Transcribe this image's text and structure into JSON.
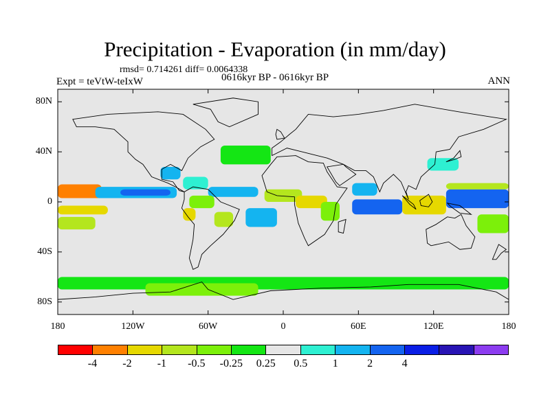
{
  "title": "Precipitation - Evaporation (in mm/day)",
  "stats_text": "rmsd= 0.714261 diff= 0.0064338",
  "experiment_label": "Expt = teVtW-teIxW",
  "period_label": "0616kyr BP - 0616kyr BP",
  "season_label": "ANN",
  "chart_data": {
    "type": "heatmap",
    "title": "Precipitation - Evaporation (in mm/day)",
    "subtitle": "0616kyr BP - 0616kyr BP",
    "projection": "cylindrical equidistant",
    "xlim": [
      -180,
      180
    ],
    "ylim": [
      -90,
      90
    ],
    "x_ticks": [
      {
        "value": -180,
        "label": "180"
      },
      {
        "value": -120,
        "label": "120W"
      },
      {
        "value": -60,
        "label": "60W"
      },
      {
        "value": 0,
        "label": "0"
      },
      {
        "value": 60,
        "label": "60E"
      },
      {
        "value": 120,
        "label": "120E"
      },
      {
        "value": 180,
        "label": "180"
      }
    ],
    "y_ticks": [
      {
        "value": 80,
        "label": "80N"
      },
      {
        "value": 40,
        "label": "40N"
      },
      {
        "value": 0,
        "label": "0"
      },
      {
        "value": -40,
        "label": "40S"
      },
      {
        "value": -80,
        "label": "80S"
      }
    ],
    "colorbar": {
      "colors": [
        "#ff0000",
        "#ff8000",
        "#e6d800",
        "#b4e61e",
        "#7cf00a",
        "#14e614",
        "#e6e6e6",
        "#2ef0d2",
        "#14b4f0",
        "#1464f0",
        "#0a1ee6",
        "#2814b4",
        "#8c3cf0"
      ],
      "tick_labels": [
        "-4",
        "-2",
        "-1",
        "-0.5",
        "-0.25",
        "0.25",
        "0.5",
        "1",
        "2",
        "4"
      ],
      "tick_values": [
        -4,
        -2,
        -1,
        -0.5,
        -0.25,
        0.25,
        0.5,
        1,
        2,
        4
      ]
    },
    "regions": [
      {
        "name": "central-pacific-dry-n",
        "lon": [
          -180,
          -145
        ],
        "lat": [
          3,
          14
        ],
        "value": -4
      },
      {
        "name": "east-pacific-dry-s",
        "lon": [
          -180,
          -140
        ],
        "lat": [
          -10,
          -3
        ],
        "value": -2
      },
      {
        "name": "south-pacific-dry",
        "lon": [
          -180,
          -150
        ],
        "lat": [
          -22,
          -12
        ],
        "value": -1
      },
      {
        "name": "north-pacific-wet",
        "lon": [
          -150,
          -85
        ],
        "lat": [
          3,
          12
        ],
        "value": 1
      },
      {
        "name": "east-pacific-itcz",
        "lon": [
          -130,
          -90
        ],
        "lat": [
          5,
          10
        ],
        "value": 2
      },
      {
        "name": "gulf-of-mexico-wet",
        "lon": [
          -98,
          -82
        ],
        "lat": [
          18,
          28
        ],
        "value": 1
      },
      {
        "name": "tropical-atlantic-wet",
        "lon": [
          -60,
          -20
        ],
        "lat": [
          4,
          12
        ],
        "value": 1
      },
      {
        "name": "caribbean-wet",
        "lon": [
          -80,
          -60
        ],
        "lat": [
          10,
          20
        ],
        "value": 0.5
      },
      {
        "name": "south-america-north-dry",
        "lon": [
          -75,
          -55
        ],
        "lat": [
          -5,
          5
        ],
        "value": -0.5
      },
      {
        "name": "andes-dry",
        "lon": [
          -80,
          -70
        ],
        "lat": [
          -15,
          -5
        ],
        "value": -2
      },
      {
        "name": "brazil-dry",
        "lon": [
          -55,
          -40
        ],
        "lat": [
          -20,
          -8
        ],
        "value": -1
      },
      {
        "name": "atlantic-south-wet",
        "lon": [
          -30,
          -5
        ],
        "lat": [
          -20,
          -5
        ],
        "value": 1
      },
      {
        "name": "west-africa-dry",
        "lon": [
          -15,
          15
        ],
        "lat": [
          0,
          10
        ],
        "value": -1
      },
      {
        "name": "central-africa-dry",
        "lon": [
          10,
          35
        ],
        "lat": [
          -5,
          5
        ],
        "value": -2
      },
      {
        "name": "east-africa-dry",
        "lon": [
          30,
          45
        ],
        "lat": [
          -15,
          0
        ],
        "value": -0.5
      },
      {
        "name": "indian-ocean-wet",
        "lon": [
          55,
          95
        ],
        "lat": [
          -10,
          2
        ],
        "value": 2
      },
      {
        "name": "arabian-sea-wet",
        "lon": [
          55,
          75
        ],
        "lat": [
          5,
          15
        ],
        "value": 1
      },
      {
        "name": "maritime-continent-dry",
        "lon": [
          95,
          130
        ],
        "lat": [
          -10,
          5
        ],
        "value": -2
      },
      {
        "name": "west-pacific-wet",
        "lon": [
          130,
          180
        ],
        "lat": [
          -5,
          10
        ],
        "value": 2
      },
      {
        "name": "west-pacific-dry",
        "lon": [
          130,
          180
        ],
        "lat": [
          10,
          15
        ],
        "value": -1
      },
      {
        "name": "south-pacific-dry",
        "lon": [
          155,
          180
        ],
        "lat": [
          -25,
          -10
        ],
        "value": -0.5
      },
      {
        "name": "east-asia-wet",
        "lon": [
          115,
          140
        ],
        "lat": [
          25,
          35
        ],
        "value": 0.5
      },
      {
        "name": "north-atlantic-dry",
        "lon": [
          -50,
          -10
        ],
        "lat": [
          30,
          45
        ],
        "value": -0.25
      },
      {
        "name": "southern-ocean-dry",
        "lon": [
          -180,
          180
        ],
        "lat": [
          -70,
          -60
        ],
        "value": -0.25
      },
      {
        "name": "antarctic-margin-dry",
        "lon": [
          -110,
          -20
        ],
        "lat": [
          -75,
          -65
        ],
        "value": -0.5
      }
    ]
  }
}
